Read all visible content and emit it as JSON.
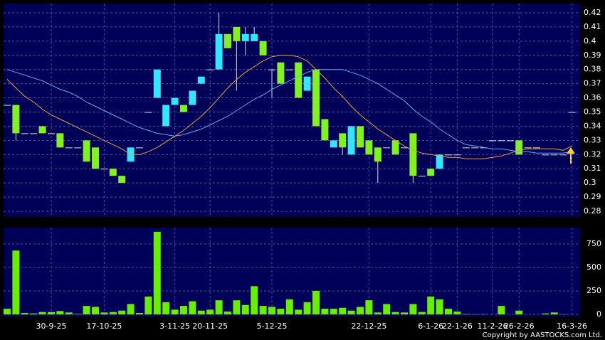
{
  "chart_data": {
    "type": "candlestick",
    "categories": [
      null,
      null,
      null,
      null,
      null,
      "30-9-25",
      null,
      null,
      null,
      null,
      null,
      "17-10-25",
      null,
      null,
      null,
      null,
      null,
      null,
      null,
      "3-11-25",
      null,
      null,
      null,
      "20-11-25",
      null,
      null,
      null,
      null,
      null,
      null,
      "5-12-25",
      null,
      null,
      null,
      null,
      null,
      null,
      null,
      null,
      null,
      null,
      "22-12-25",
      null,
      null,
      null,
      null,
      null,
      null,
      "6-1-26",
      null,
      null,
      "22-1-26",
      null,
      null,
      null,
      "11-2-26",
      null,
      null,
      "26-2-26",
      null,
      null,
      null,
      null,
      null,
      "16-3-26"
    ],
    "open": [
      0.355,
      0.355,
      0.335,
      0.335,
      0.34,
      0.335,
      0.335,
      0.325,
      0.325,
      0.33,
      0.325,
      0.31,
      0.31,
      0.305,
      0.315,
      0.325,
      0.35,
      0.36,
      0.34,
      0.355,
      0.355,
      0.355,
      0.37,
      0.38,
      0.38,
      0.405,
      0.41,
      0.4,
      0.4,
      0.4,
      0.38,
      0.385,
      0.38,
      0.385,
      0.365,
      0.38,
      0.345,
      0.325,
      0.335,
      0.32,
      0.34,
      0.33,
      0.325,
      0.325,
      0.33,
      0.325,
      0.335,
      0.305,
      0.31,
      0.31,
      0.32,
      0.32,
      0.325,
      0.325,
      0.325,
      0.33,
      0.33,
      0.33,
      0.33,
      0.325,
      0.325,
      0.32,
      0.32,
      0.32,
      0.35
    ],
    "high": [
      0.355,
      0.355,
      0.335,
      0.335,
      0.34,
      0.335,
      0.335,
      0.325,
      0.325,
      0.33,
      0.325,
      0.31,
      0.31,
      0.305,
      0.325,
      0.325,
      0.35,
      0.38,
      0.355,
      0.36,
      0.355,
      0.365,
      0.375,
      0.38,
      0.42,
      0.405,
      0.41,
      0.41,
      0.41,
      0.4,
      0.38,
      0.385,
      0.38,
      0.385,
      0.375,
      0.38,
      0.345,
      0.33,
      0.335,
      0.34,
      0.34,
      0.33,
      0.325,
      0.325,
      0.33,
      0.325,
      0.335,
      0.305,
      0.31,
      0.32,
      0.32,
      0.32,
      0.325,
      0.325,
      0.325,
      0.33,
      0.33,
      0.33,
      0.33,
      0.325,
      0.325,
      0.32,
      0.32,
      0.32,
      0.35
    ],
    "low": [
      0.355,
      0.33,
      0.335,
      0.335,
      0.335,
      0.335,
      0.325,
      0.325,
      0.325,
      0.315,
      0.31,
      0.31,
      0.305,
      0.3,
      0.315,
      0.325,
      0.35,
      0.36,
      0.34,
      0.355,
      0.35,
      0.355,
      0.37,
      0.38,
      0.38,
      0.395,
      0.365,
      0.39,
      0.4,
      0.39,
      0.36,
      0.37,
      0.38,
      0.36,
      0.365,
      0.34,
      0.33,
      0.325,
      0.32,
      0.32,
      0.325,
      0.32,
      0.3,
      0.325,
      0.32,
      0.325,
      0.3,
      0.305,
      0.305,
      0.31,
      0.32,
      0.32,
      0.325,
      0.325,
      0.325,
      0.33,
      0.33,
      0.33,
      0.32,
      0.325,
      0.325,
      0.32,
      0.32,
      0.32,
      0.35
    ],
    "close": [
      0.355,
      0.335,
      0.335,
      0.335,
      0.335,
      0.335,
      0.325,
      0.325,
      0.325,
      0.315,
      0.31,
      0.31,
      0.305,
      0.3,
      0.325,
      0.325,
      0.35,
      0.38,
      0.355,
      0.36,
      0.35,
      0.365,
      0.375,
      0.38,
      0.405,
      0.395,
      0.4,
      0.405,
      0.405,
      0.39,
      0.38,
      0.37,
      0.38,
      0.36,
      0.375,
      0.34,
      0.33,
      0.33,
      0.325,
      0.34,
      0.325,
      0.32,
      0.315,
      0.325,
      0.32,
      0.325,
      0.305,
      0.305,
      0.305,
      0.32,
      0.32,
      0.32,
      0.325,
      0.325,
      0.325,
      0.33,
      0.33,
      0.33,
      0.32,
      0.325,
      0.325,
      0.32,
      0.32,
      0.32,
      0.35
    ],
    "up_color": "#33e6ff",
    "down_color": "#7ff21f",
    "doji_color": "#e0e0e0",
    "ylim": [
      0.276,
      0.4265
    ],
    "yticks": [
      0.28,
      0.29,
      0.3,
      0.31,
      0.32,
      0.33,
      0.34,
      0.35,
      0.36,
      0.37,
      0.38,
      0.39,
      0.4,
      0.41,
      0.42
    ],
    "grid": true,
    "moving_averages": [
      {
        "color": "#4fb3f0",
        "values": [
          0.38,
          0.378,
          0.376,
          0.374,
          0.372,
          0.369,
          0.366,
          0.364,
          0.361,
          0.357,
          0.354,
          0.351,
          0.348,
          0.345,
          0.342,
          0.339,
          0.337,
          0.335,
          0.334,
          0.333,
          0.334,
          0.336,
          0.338,
          0.341,
          0.344,
          0.347,
          0.351,
          0.355,
          0.359,
          0.362,
          0.366,
          0.369,
          0.372,
          0.375,
          0.378,
          0.38,
          0.38,
          0.38,
          0.38,
          0.378,
          0.376,
          0.373,
          0.37,
          0.366,
          0.362,
          0.358,
          0.352,
          0.347,
          0.343,
          0.338,
          0.334,
          0.33,
          0.327,
          0.326,
          0.325,
          0.324,
          0.324,
          0.323,
          0.322,
          0.322,
          0.321,
          0.321,
          0.321,
          0.321,
          0.322
        ]
      },
      {
        "color": "#f0a040",
        "values": [
          0.373,
          0.367,
          0.361,
          0.357,
          0.352,
          0.348,
          0.345,
          0.342,
          0.339,
          0.336,
          0.333,
          0.33,
          0.327,
          0.324,
          0.32,
          0.32,
          0.322,
          0.325,
          0.329,
          0.333,
          0.337,
          0.342,
          0.347,
          0.353,
          0.36,
          0.367,
          0.373,
          0.378,
          0.382,
          0.386,
          0.389,
          0.39,
          0.39,
          0.389,
          0.386,
          0.38,
          0.374,
          0.367,
          0.361,
          0.354,
          0.348,
          0.343,
          0.338,
          0.334,
          0.33,
          0.326,
          0.323,
          0.321,
          0.32,
          0.319,
          0.318,
          0.318,
          0.317,
          0.317,
          0.317,
          0.318,
          0.319,
          0.321,
          0.323,
          0.324,
          0.324,
          0.324,
          0.324,
          0.323,
          0.326
        ]
      }
    ],
    "volume": {
      "color": "#66f000",
      "values": [
        60,
        680,
        15,
        10,
        25,
        25,
        35,
        20,
        5,
        90,
        80,
        20,
        25,
        40,
        110,
        15,
        190,
        880,
        130,
        50,
        90,
        140,
        40,
        50,
        150,
        30,
        150,
        100,
        300,
        90,
        80,
        60,
        160,
        50,
        130,
        250,
        60,
        60,
        70,
        40,
        80,
        150,
        20,
        110,
        25,
        20,
        110,
        25,
        190,
        160,
        60,
        30,
        5,
        3,
        3,
        0,
        90,
        0,
        40,
        0,
        0,
        10,
        20,
        3,
        0
      ],
      "ylim": [
        -23,
        924
      ],
      "yticks": [
        0,
        250,
        500,
        750
      ]
    },
    "annotation": "Copyright by AASTOCKS.com Ltd."
  }
}
